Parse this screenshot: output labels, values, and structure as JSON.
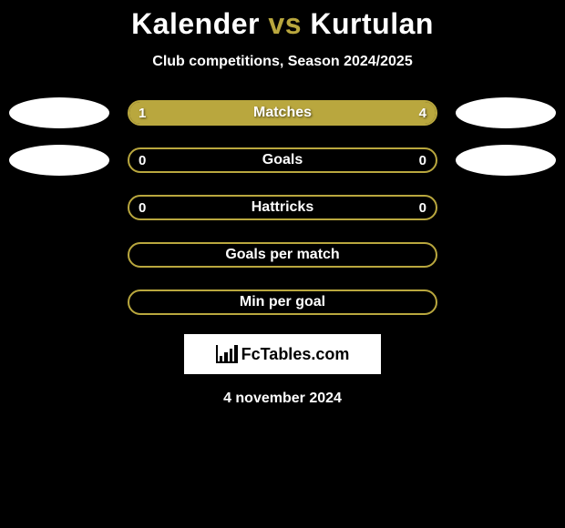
{
  "title": {
    "left": "Kalender",
    "vs": "vs",
    "right": "Kurtulan"
  },
  "subtitle": "Club competitions, Season 2024/2025",
  "colors": {
    "accent": "#b9a73e",
    "background": "#000000",
    "text": "#ffffff",
    "logo_bg": "#ffffff"
  },
  "rows": [
    {
      "label": "Matches",
      "left_value": "1",
      "right_value": "4",
      "left_fill_pct": 20,
      "right_fill_pct": 80,
      "show_values": true,
      "show_ovals": true
    },
    {
      "label": "Goals",
      "left_value": "0",
      "right_value": "0",
      "left_fill_pct": 0,
      "right_fill_pct": 0,
      "show_values": true,
      "show_ovals": true
    },
    {
      "label": "Hattricks",
      "left_value": "0",
      "right_value": "0",
      "left_fill_pct": 0,
      "right_fill_pct": 0,
      "show_values": true,
      "show_ovals": false
    },
    {
      "label": "Goals per match",
      "left_value": "",
      "right_value": "",
      "left_fill_pct": 0,
      "right_fill_pct": 0,
      "show_values": false,
      "show_ovals": false
    },
    {
      "label": "Min per goal",
      "left_value": "",
      "right_value": "",
      "left_fill_pct": 0,
      "right_fill_pct": 0,
      "show_values": false,
      "show_ovals": false
    }
  ],
  "logo_text": "FcTables.com",
  "date": "4 november 2024"
}
